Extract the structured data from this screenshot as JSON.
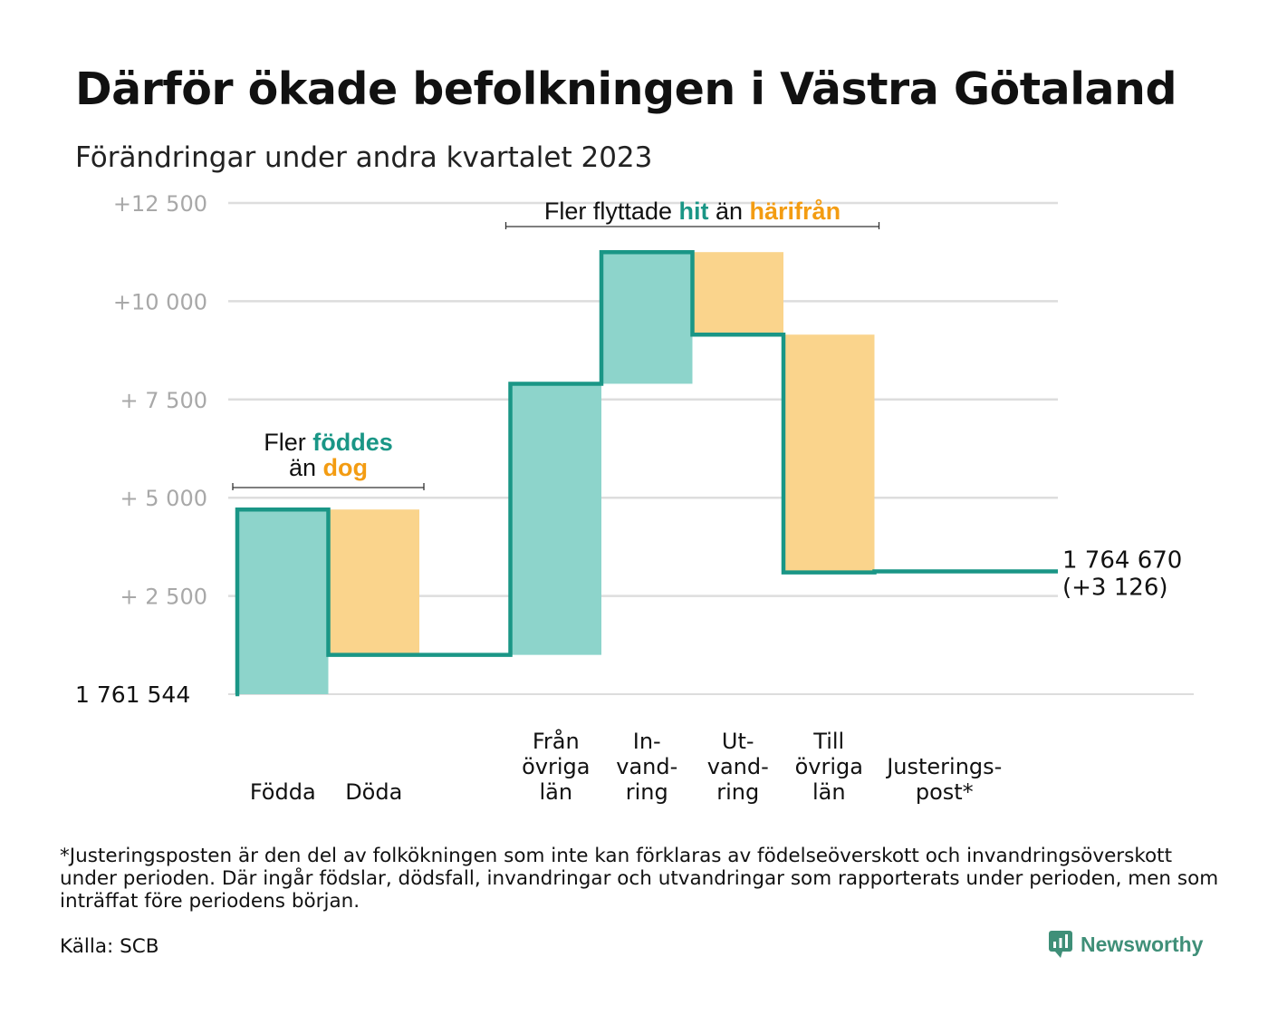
{
  "title": "Därför ökade befolkningen i Västra Götaland",
  "subtitle": "Förändringar under andra kvartalet 2023",
  "chart_data": {
    "type": "waterfall",
    "baseline_label": "1 761 544",
    "y_tick_labels": [
      {
        "value": 12500,
        "label": "+12   500"
      },
      {
        "value": 10000,
        "label": "+10   000"
      },
      {
        "value": 7500,
        "label": "+  7  500"
      },
      {
        "value": 5000,
        "label": "+  5  000"
      },
      {
        "value": 2500,
        "label": "+  2  500"
      }
    ],
    "ylim": [
      0,
      12500
    ],
    "grid": true,
    "steps": [
      {
        "category_lines": [
          "Födda"
        ],
        "delta": 4700,
        "kind": "plus"
      },
      {
        "category_lines": [
          "Döda"
        ],
        "delta": -3700,
        "kind": "minus"
      },
      {
        "category_lines": [],
        "delta": 0,
        "kind": "none"
      },
      {
        "category_lines": [
          "Från",
          "övriga",
          "län"
        ],
        "delta": 6900,
        "kind": "plus"
      },
      {
        "category_lines": [
          "In-",
          "vand-",
          "ring"
        ],
        "delta": 3350,
        "kind": "plus"
      },
      {
        "category_lines": [
          "Ut-",
          "vand-",
          "ring"
        ],
        "delta": -2100,
        "kind": "minus"
      },
      {
        "category_lines": [
          "Till",
          "övriga",
          "län"
        ],
        "delta": -6050,
        "kind": "minus"
      },
      {
        "category_lines": [
          "Justerings-",
          "post*"
        ],
        "delta": 26,
        "kind": "none"
      }
    ],
    "final_label": {
      "total": "1 764 670",
      "change": "(+3 126)"
    },
    "annotations": [
      {
        "id": "births",
        "from_step": 0,
        "to_step": 1,
        "line1": [
          {
            "text": "Fler ",
            "style": "plain"
          },
          {
            "text": "föddes",
            "style": "plus"
          }
        ],
        "line2": [
          {
            "text": "än ",
            "style": "plain"
          },
          {
            "text": "dog",
            "style": "minus"
          }
        ]
      },
      {
        "id": "migration",
        "from_step": 3,
        "to_step": 6,
        "line1": [
          {
            "text": "Fler flyttade ",
            "style": "plain"
          },
          {
            "text": "hit",
            "style": "plus"
          },
          {
            "text": "  än ",
            "style": "plain"
          },
          {
            "text": "härifrån",
            "style": "minus"
          }
        ]
      }
    ],
    "colors": {
      "plus_fill": "#8dd4cb",
      "minus_fill": "#fad48c",
      "line": "#1a9686",
      "plus_text": "#1a9686",
      "minus_text": "#f39c12",
      "grid": "#dddddd",
      "tick_text": "#a8a8a8",
      "bracket": "#333333"
    }
  },
  "footnote": "*Justeringsposten är den del av folkökningen som inte kan förklaras av födelseöverskott och invandringsöverskott under perioden. Där ingår födslar, dödsfall, invandringar och utvandringar som rapporterats under perioden, men som inträffat före periodens början.",
  "source": "Källa: SCB",
  "brand": {
    "name": "Newsworthy",
    "logo_color": "#3f8f78"
  }
}
